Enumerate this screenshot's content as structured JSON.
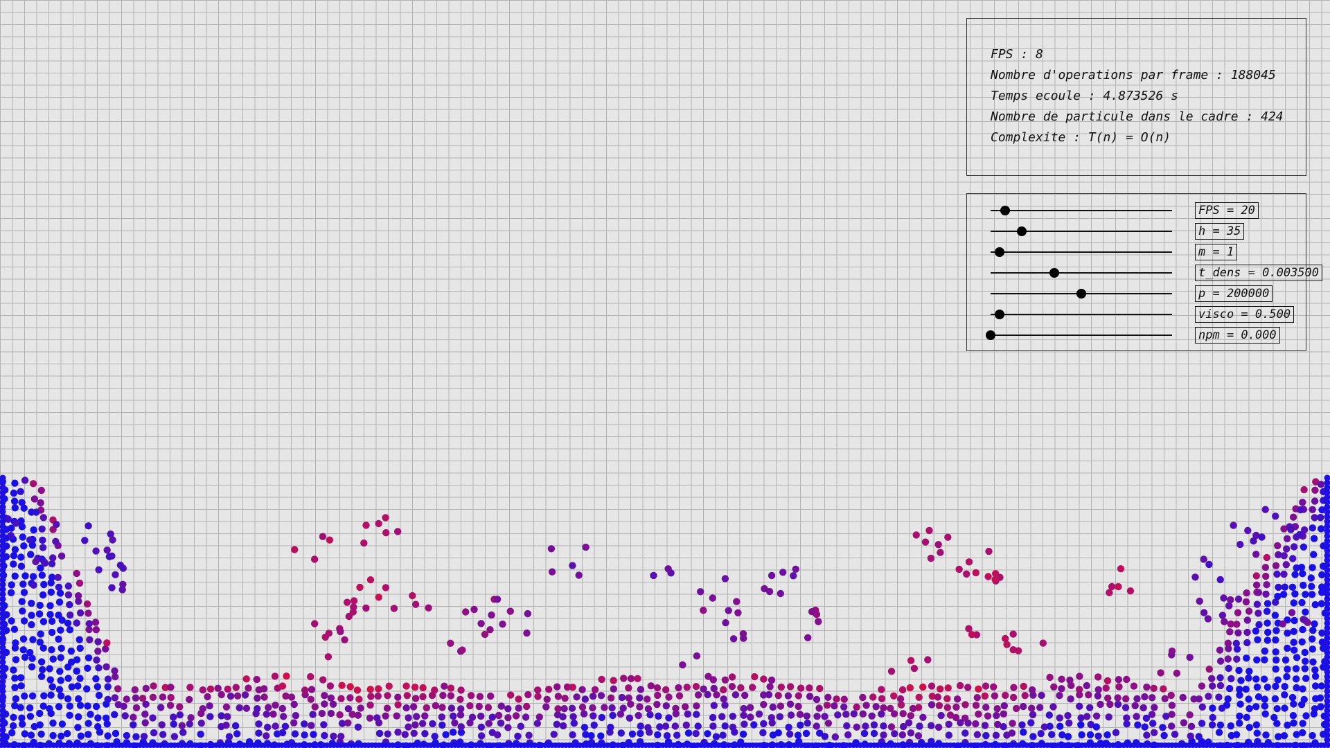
{
  "stats": {
    "fps": "FPS : 8",
    "operations": "Nombre d'operations par frame : 188045",
    "elapsed": "Temps ecoule : 4.873526 s",
    "particles": "Nombre de particule dans le cadre : 424",
    "complexity": "Complexite : T(n) = O(n)"
  },
  "sliders": [
    {
      "label": "FPS = 20",
      "level": 0.08
    },
    {
      "label": "h = 35",
      "level": 0.17
    },
    {
      "label": "m = 1",
      "level": 0.05
    },
    {
      "label": "t_dens = 0.003500",
      "level": 0.35
    },
    {
      "label": "p = 200000",
      "level": 0.5
    },
    {
      "label": "visco = 0.500",
      "level": 0.05
    },
    {
      "label": "npm = 0.000",
      "level": 0.0
    }
  ],
  "colors": {
    "background": "#e6e6e6",
    "grid": "#b3b3b3",
    "particle_low": "#1a10e6",
    "particle_high": "#d0104a"
  }
}
